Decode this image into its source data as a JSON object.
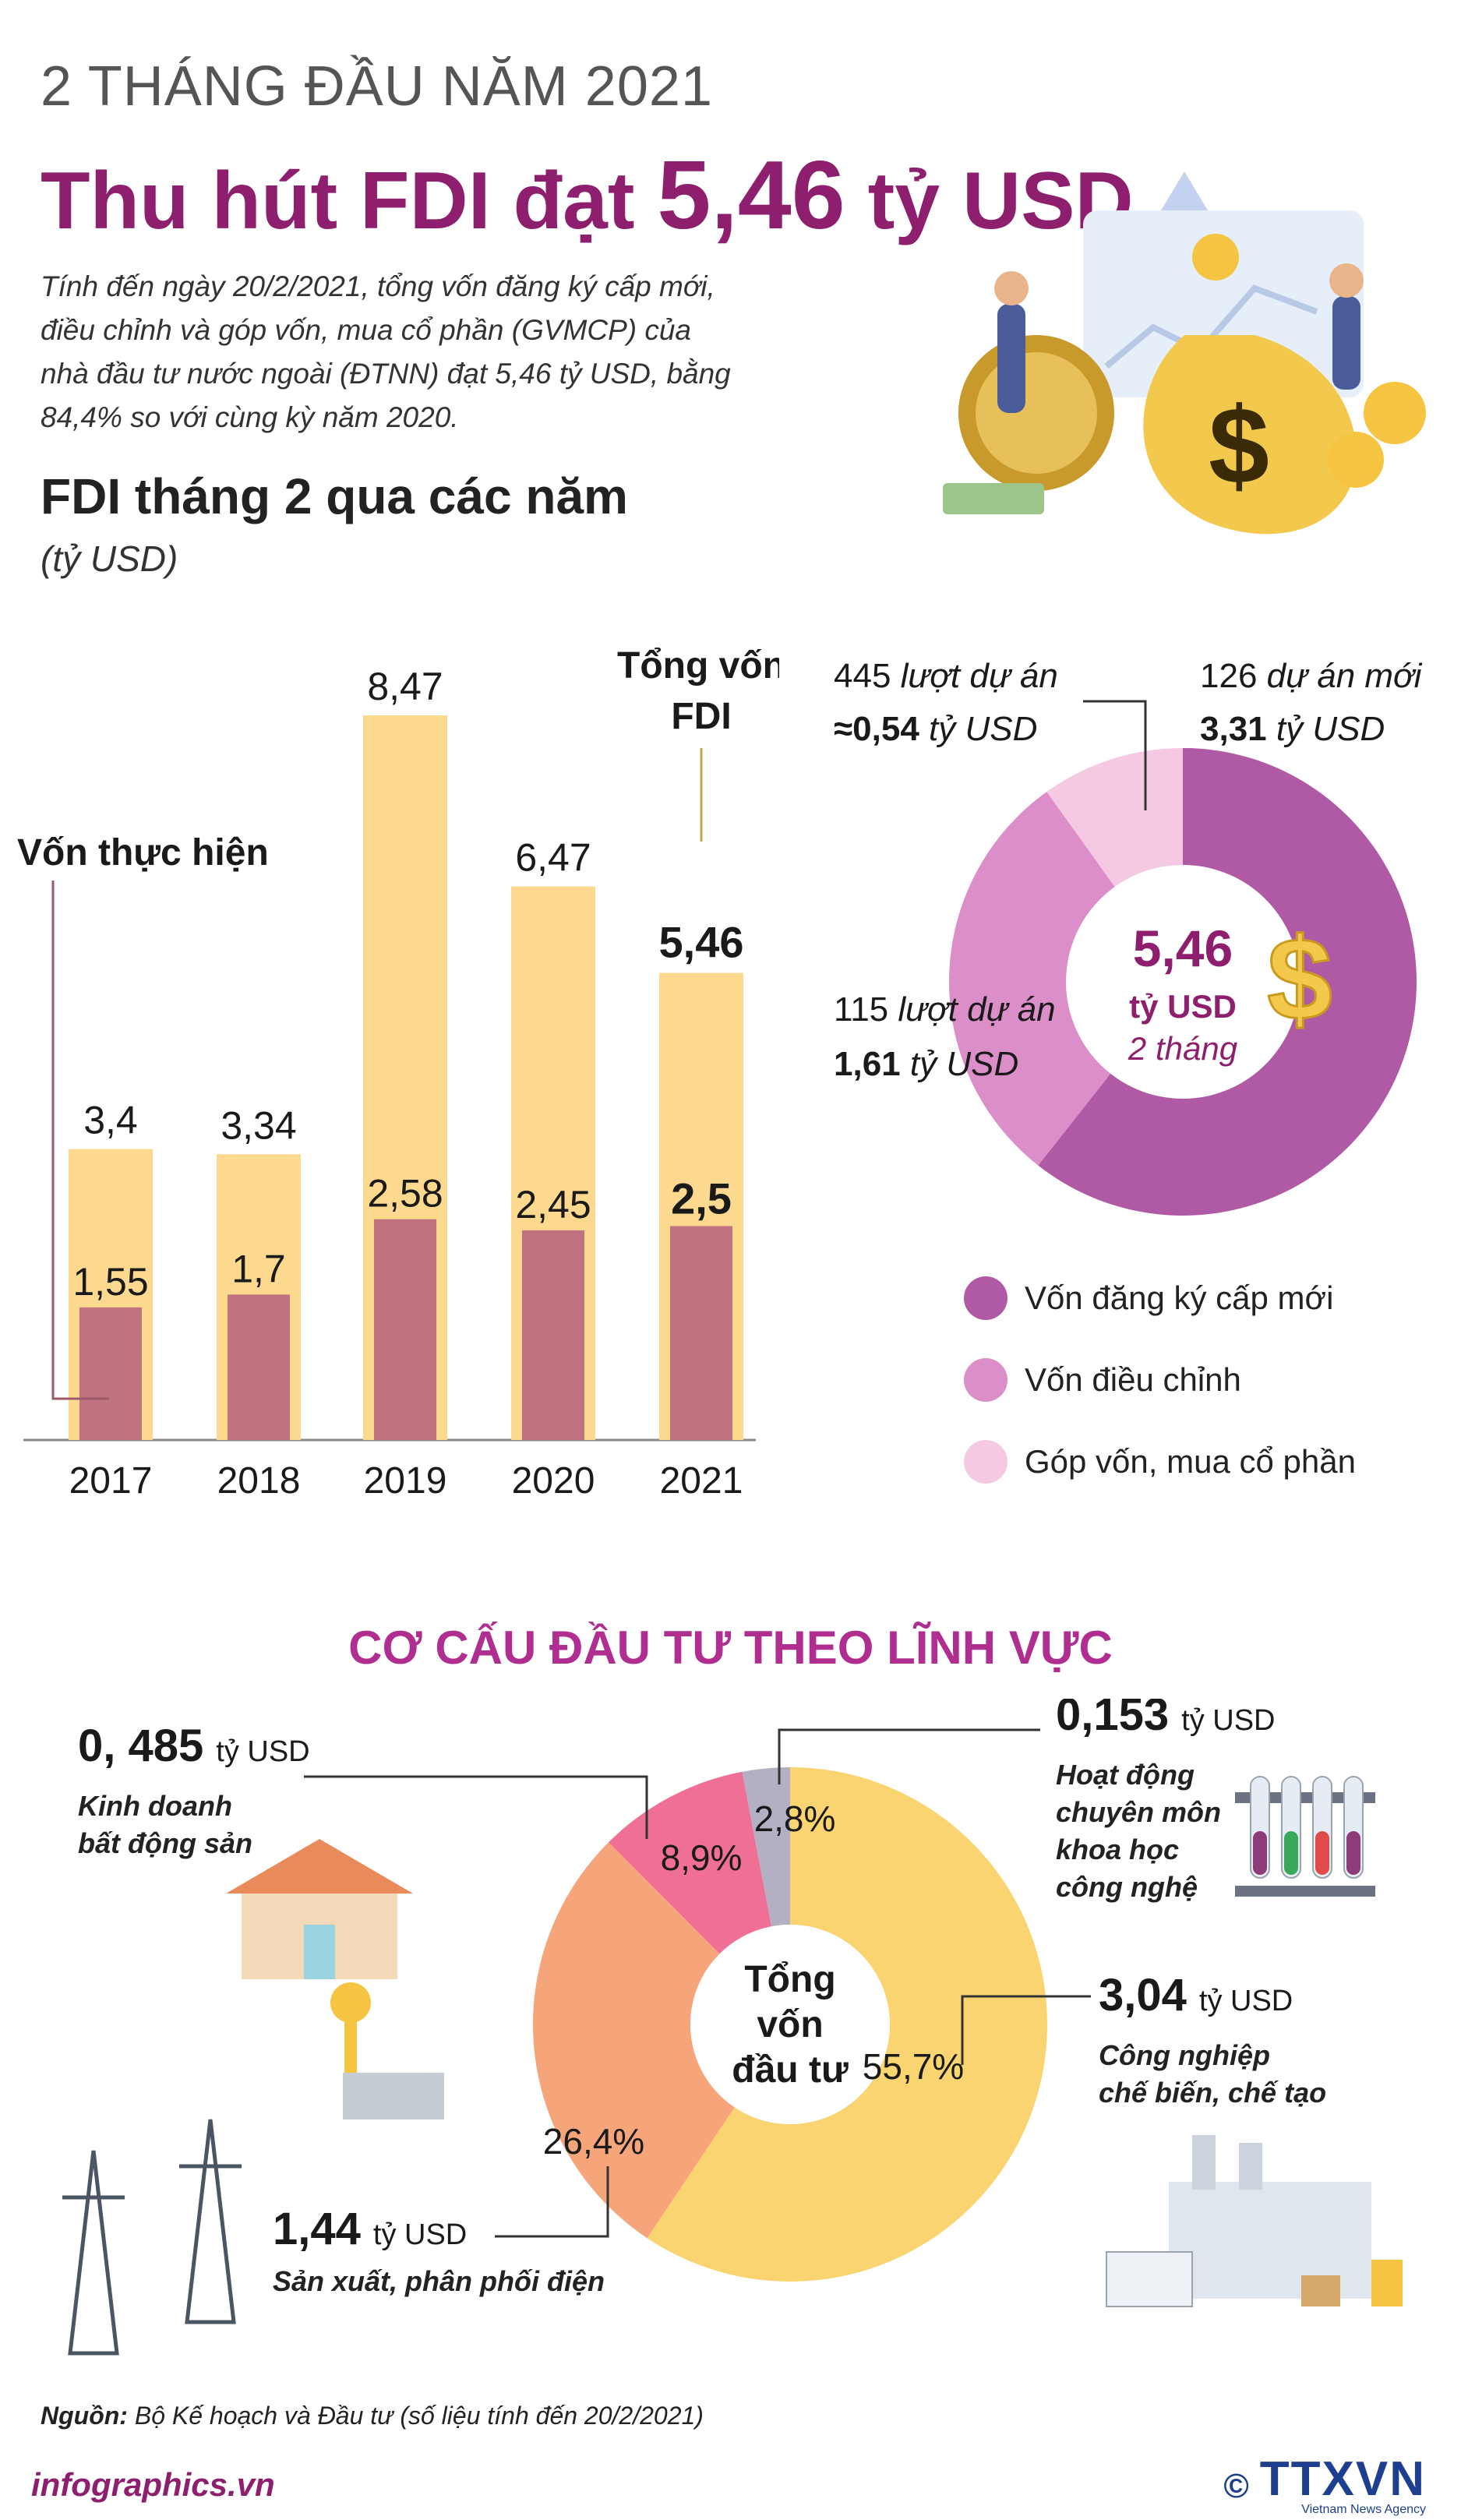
{
  "header": {
    "kicker": "2 THÁNG ĐẦU NĂM 2021",
    "headline_pre": "Thu hút FDI đạt ",
    "headline_num": "5,46",
    "headline_post": " tỷ USD",
    "intro": "Tính đến ngày 20/2/2021, tổng vốn đăng ký cấp mới, điều chỉnh và góp vốn, mua cổ phần (GVMCP) của nhà đầu tư nước ngoài (ĐTNN) đạt 5,46 tỷ USD, bằng 84,4% so với cùng kỳ năm 2020."
  },
  "bar_section": {
    "title": "FDI tháng 2 qua các năm",
    "unit": "(tỷ USD)"
  },
  "donut_section": {
    "legend_title": ""
  },
  "sector_section": {
    "title": "CƠ CẤU ĐẦU TƯ THEO LĨNH VỰC"
  },
  "footer": {
    "source_label": "Nguồn:",
    "source_text": "Bộ Kế hoạch và Đầu tư (số liệu tính đến 20/2/2021)",
    "site": "infographics.vn",
    "copyright": "©",
    "agency_logo": "TTXVN",
    "agency_name": "Vietnam News Agency"
  },
  "colors": {
    "accent": "#8e1f6e",
    "bar_total": "#fcd98f",
    "bar_implemented": "#c0737e",
    "donut_new": "#b05aa6",
    "donut_adjust": "#dc8ec8",
    "donut_capital": "#f5c9e2",
    "sector_manufacturing": "#f9d470",
    "sector_power": "#f6a57a",
    "sector_realestate": "#ef6f95",
    "sector_science": "#b3b0c3"
  },
  "chart_data": [
    {
      "type": "bar",
      "title": "FDI tháng 2 qua các năm",
      "ylabel": "(tỷ USD)",
      "categories": [
        "2017",
        "2018",
        "2019",
        "2020",
        "2021"
      ],
      "series": [
        {
          "name": "Tổng vốn FDI",
          "values": [
            3.4,
            3.34,
            8.47,
            6.47,
            5.46
          ],
          "labels": [
            "3,4",
            "3,34",
            "8,47",
            "6,47",
            "5,46"
          ]
        },
        {
          "name": "Vốn thực hiện",
          "values": [
            1.55,
            1.7,
            2.58,
            2.45,
            2.5
          ],
          "labels": [
            "1,55",
            "1,7",
            "2,58",
            "2,45",
            "2,5"
          ]
        }
      ],
      "annotations": {
        "total": "Tổng vốn FDI",
        "implemented": "Vốn thực hiện"
      },
      "ylim": [
        0,
        8.47
      ]
    },
    {
      "type": "pie",
      "title": "5,46 tỷ USD 2 tháng",
      "center": {
        "value": "5,46",
        "unit": "tỷ USD",
        "period": "2 tháng"
      },
      "slices": [
        {
          "name": "Vốn đăng ký cấp mới",
          "value": 3.31,
          "count_text": "126 dự án mới",
          "value_text": "3,31",
          "unit": "tỷ USD"
        },
        {
          "name": "Vốn điều chỉnh",
          "value": 1.61,
          "count_text": "115 lượt dự án",
          "value_text": "1,61",
          "unit": "tỷ USD"
        },
        {
          "name": "Góp vốn, mua cổ phần",
          "value": 0.54,
          "count_text": "445 lượt dự án",
          "value_text": "≈0,54",
          "unit": "tỷ USD"
        }
      ]
    },
    {
      "type": "pie",
      "title": "CƠ CẤU ĐẦU TƯ THEO LĨNH VỰC",
      "center": [
        "Tổng",
        "vốn",
        "đầu tư"
      ],
      "slices": [
        {
          "name": "Công nghiệp chế biến, chế tạo",
          "percent": 55.7,
          "pct_label": "55,7%",
          "value_text": "3,04",
          "unit": "tỷ USD",
          "label_lines": [
            "Công nghiệp",
            "chế biến, chế tạo"
          ]
        },
        {
          "name": "Sản xuất, phân phối điện",
          "percent": 26.4,
          "pct_label": "26,4%",
          "value_text": "1,44",
          "unit": "tỷ USD",
          "label_lines": [
            "Sản xuất, phân phối điện"
          ]
        },
        {
          "name": "Kinh doanh bất động sản",
          "percent": 8.9,
          "pct_label": "8,9%",
          "value_text": "0, 485",
          "unit": "tỷ USD",
          "label_lines": [
            "Kinh doanh",
            "bất động sản"
          ]
        },
        {
          "name": "Hoạt động chuyên môn khoa học công nghệ",
          "percent": 2.8,
          "pct_label": "2,8%",
          "value_text": "0,153",
          "unit": "tỷ USD",
          "label_lines": [
            "Hoạt động",
            "chuyên môn",
            "khoa học",
            "công nghệ"
          ]
        }
      ]
    }
  ]
}
